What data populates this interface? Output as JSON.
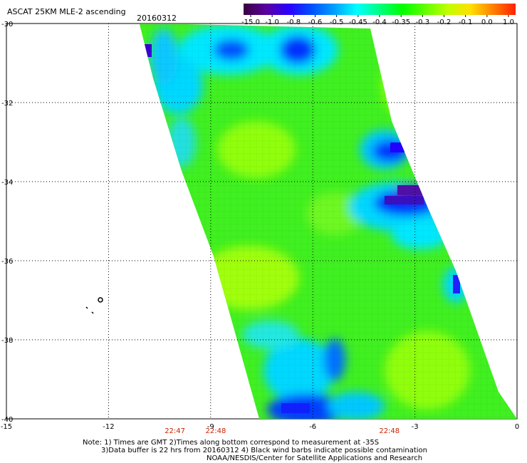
{
  "title": "ASCAT 25KM MLE-2 ascending",
  "date": "20160312",
  "colorbar": {
    "labels": [
      "-15.0",
      "-1.0",
      "-0.8",
      "-0.6",
      "-0.5",
      "-0.45",
      "-0.4",
      "-0.35",
      "-0.3",
      "-0.2",
      "-0.1",
      "0.0",
      "1.0"
    ],
    "colors": [
      "#3a0040",
      "#5a00a0",
      "#2a00ff",
      "#0050ff",
      "#00a0ff",
      "#00ffff",
      "#00ff80",
      "#00ff00",
      "#60ff00",
      "#c0ff00",
      "#ffe000",
      "#ff8000",
      "#ff2000"
    ]
  },
  "axes": {
    "x_ticks": [
      "-15",
      "-12",
      "-9",
      "-6",
      "-3",
      "0"
    ],
    "x_values": [
      -15,
      -12,
      -9,
      -6,
      -3,
      0
    ],
    "y_ticks": [
      "-30",
      "-32",
      "-34",
      "-36",
      "-38",
      "-40"
    ],
    "y_values": [
      -30,
      -32,
      -34,
      -36,
      -38,
      -40
    ],
    "xlim": [
      -15,
      0
    ],
    "ylim": [
      -40,
      -30
    ]
  },
  "times": [
    "22:47",
    "22:48",
    "22:48"
  ],
  "times_lon": [
    -10.05,
    -8.85,
    -3.75
  ],
  "notes": {
    "line1": "Note: 1) Times are GMT 2)Times along bottom correspond to measurement at -35S",
    "line2": "3)Data buffer is 22 hrs from 20160312 4) Black wind barbs indicate possible contamination",
    "line3": "NOAA/NESDIS/Center for Satellite Applications and Research"
  },
  "colors": {
    "swath_base": "#40f020",
    "low_blue": "#0030ff",
    "very_low": "#5000c0",
    "cyan": "#00e8ff",
    "yellow_green": "#a8ff10",
    "time_red": "#cc2200"
  }
}
